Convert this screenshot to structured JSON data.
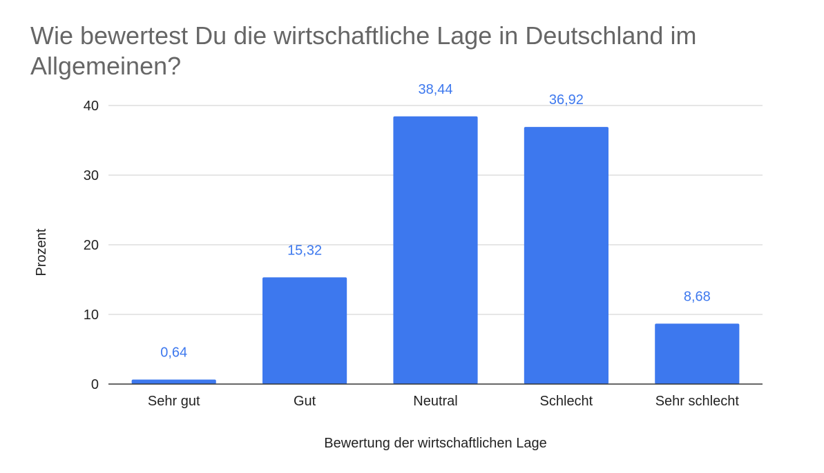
{
  "chart_data": {
    "type": "bar",
    "title": "Wie bewertest Du die wirtschaftliche Lage in Deutschland im Allgemeinen?",
    "xlabel": "Bewertung der wirtschaftlichen Lage",
    "ylabel": "Prozent",
    "categories": [
      "Sehr gut",
      "Gut",
      "Neutral",
      "Schlecht",
      "Sehr schlecht"
    ],
    "values": [
      0.64,
      15.32,
      38.44,
      36.92,
      8.68
    ],
    "value_labels": [
      "0,64",
      "15,32",
      "38,44",
      "36,92",
      "8,68"
    ],
    "ylim": [
      0,
      40
    ],
    "yticks": [
      0,
      10,
      20,
      30,
      40
    ],
    "grid": true,
    "legend": "none",
    "colors": {
      "bar": "#3d78ee",
      "data_label": "#3d78ee",
      "grid": "#cccccc",
      "axis": "#333333",
      "title": "#666666"
    }
  }
}
